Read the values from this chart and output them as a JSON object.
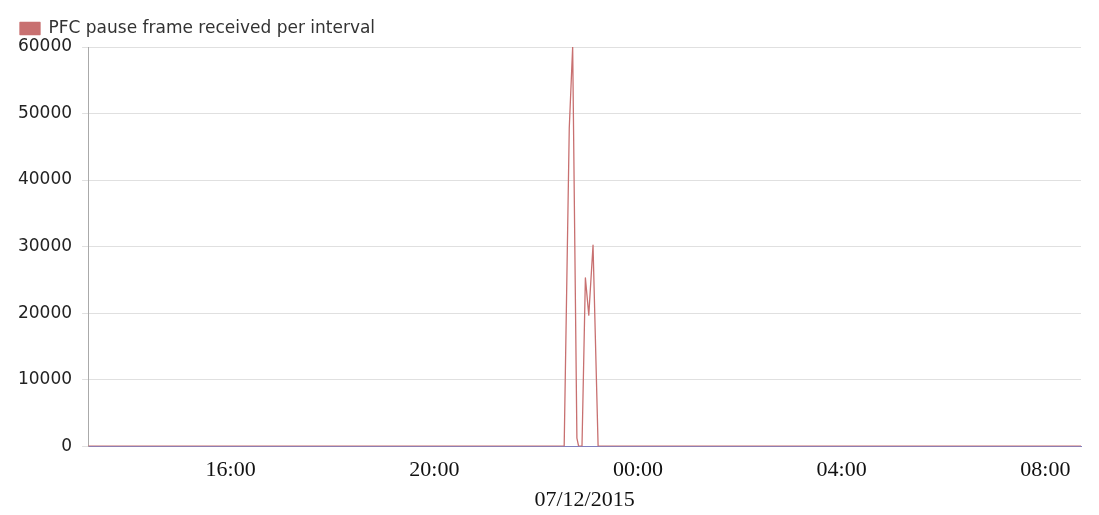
{
  "chart_data": {
    "type": "line",
    "xlabel": "07/12/2015",
    "x": [
      "2015-07-11T13:12",
      "2015-07-11T22:30",
      "2015-07-11T22:33",
      "2015-07-11T22:39",
      "2015-07-11T22:43",
      "2015-07-11T22:48",
      "2015-07-11T22:50",
      "2015-07-11T22:54",
      "2015-07-11T22:58",
      "2015-07-11T23:02",
      "2015-07-11T23:07",
      "2015-07-11T23:13",
      "2015-07-12T08:42"
    ],
    "series": [
      {
        "name": "PFC pause frame received per interval",
        "color": "#c87070",
        "values": [
          0,
          0,
          0,
          47800,
          60000,
          1200,
          0,
          0,
          25300,
          19700,
          30200,
          0,
          0
        ]
      }
    ],
    "xlim": [
      "2015-07-11T13:12",
      "2015-07-12T08:42"
    ],
    "xticks": [
      {
        "value": "2015-07-11T16:00",
        "label": "16:00"
      },
      {
        "value": "2015-07-11T20:00",
        "label": "20:00"
      },
      {
        "value": "2015-07-12T00:00",
        "label": "00:00"
      },
      {
        "value": "2015-07-12T04:00",
        "label": "04:00"
      },
      {
        "value": "2015-07-12T08:00",
        "label": "08:00"
      }
    ],
    "ylim": [
      0,
      60000
    ],
    "yticks": [
      0,
      10000,
      20000,
      30000,
      40000,
      50000,
      60000
    ],
    "grid": "y",
    "legend": "top left",
    "marker": "none",
    "line_style": "solid"
  }
}
